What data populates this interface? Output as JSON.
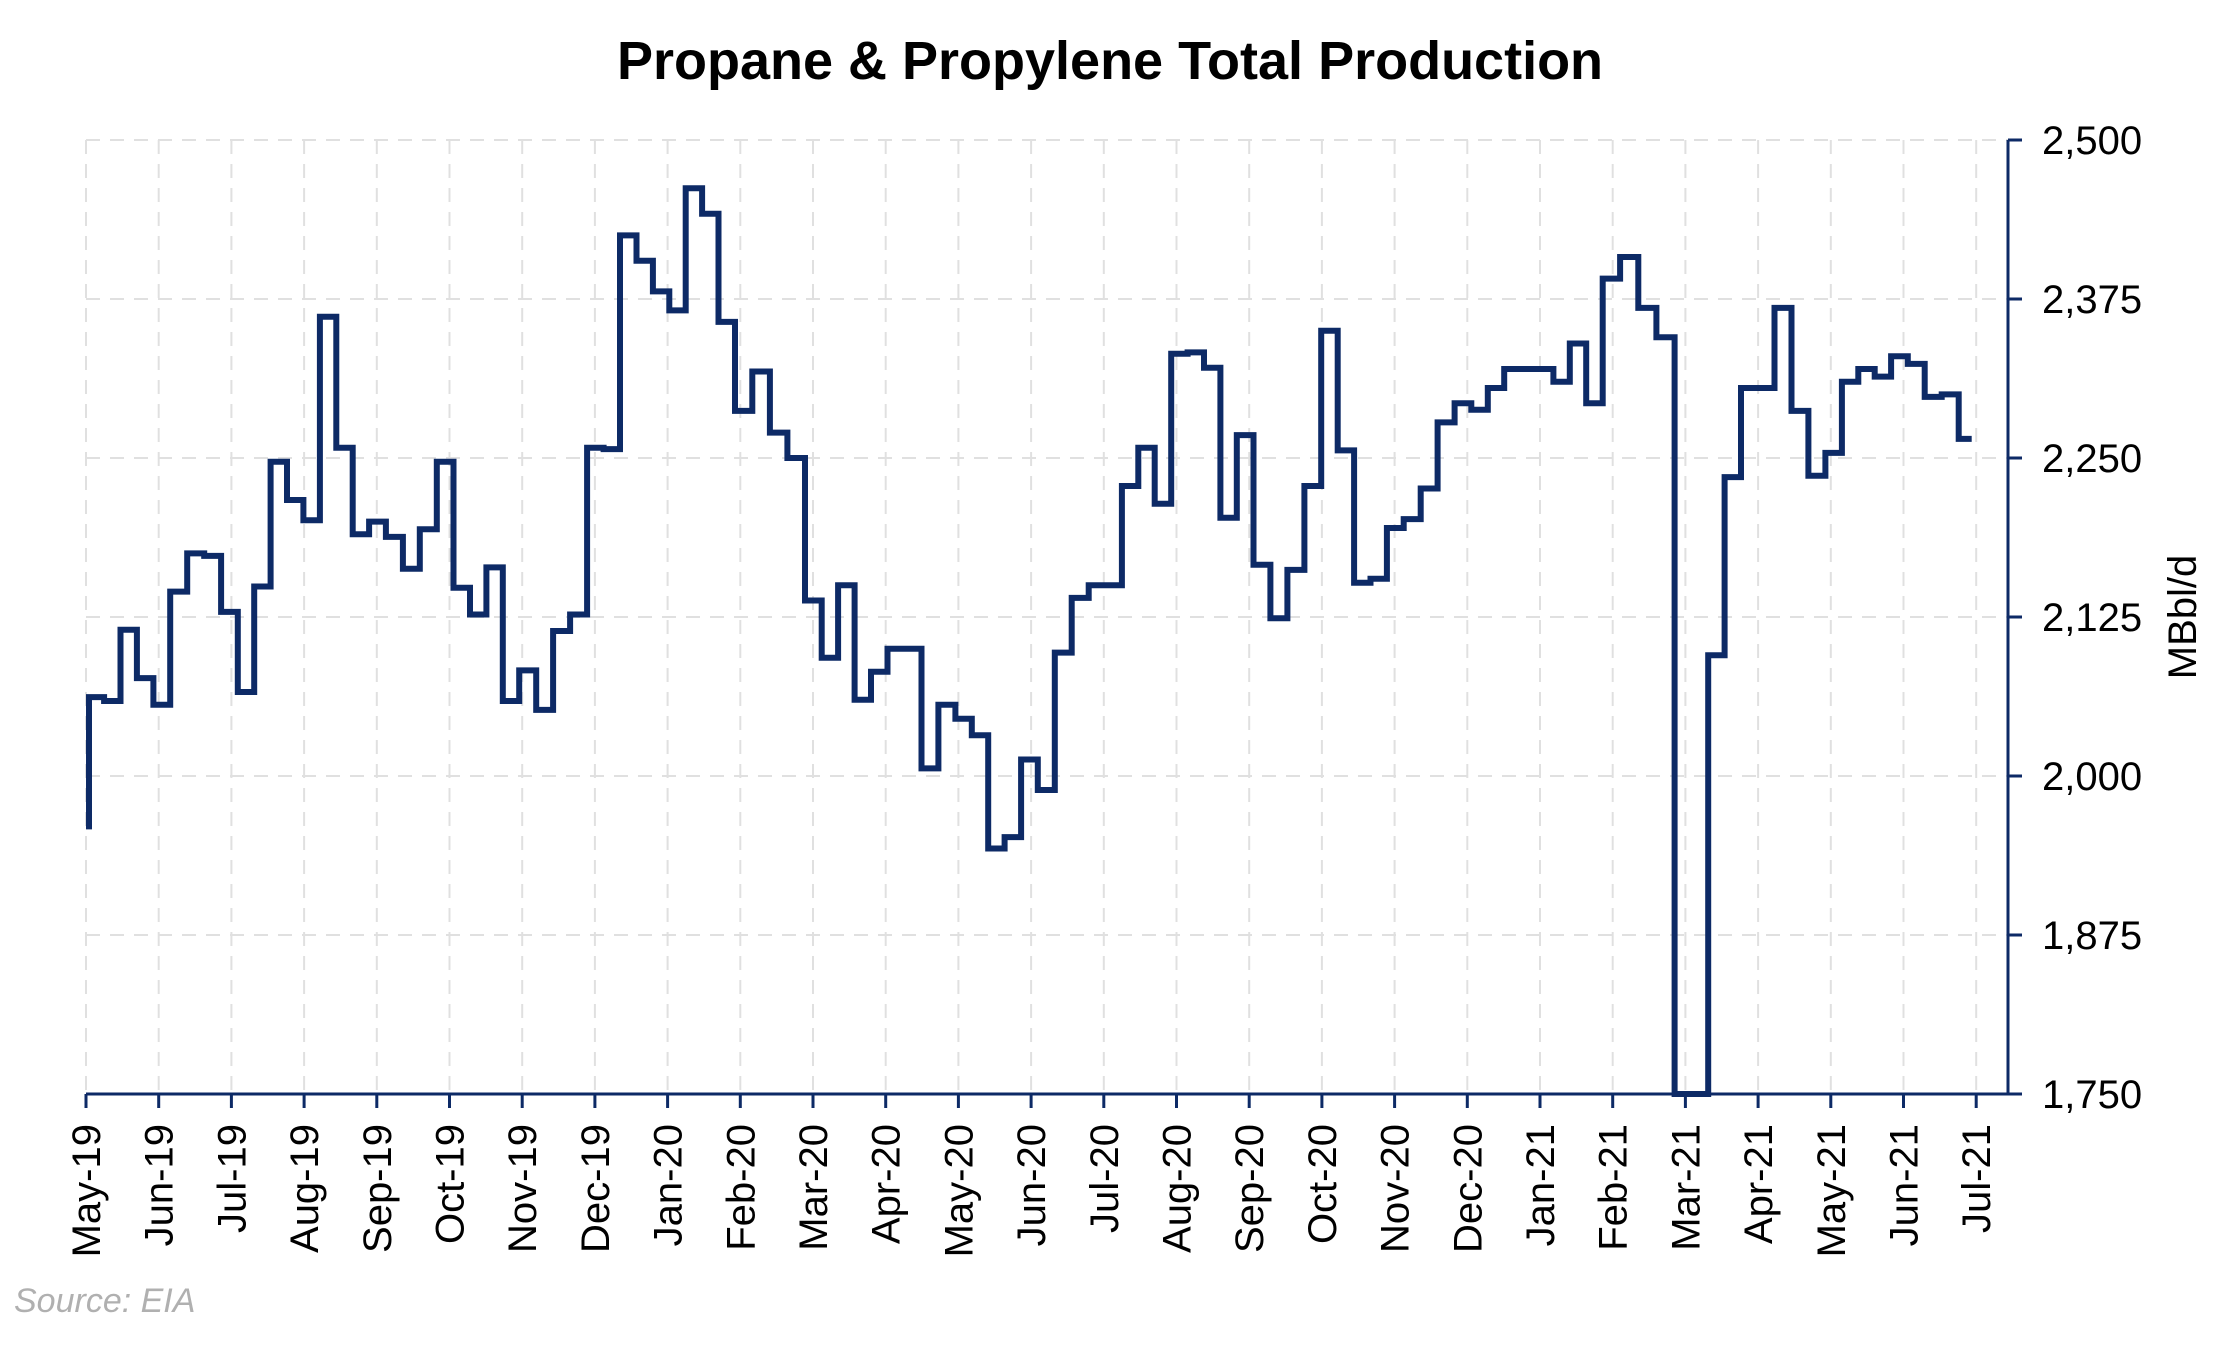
{
  "chart_data": {
    "type": "line",
    "title": "Propane & Propylene Total Production",
    "xlabel": "",
    "ylabel": "MBbl/d",
    "ylim": [
      1750,
      2500
    ],
    "y_ticks": [
      "1,750",
      "1,875",
      "2,000",
      "2,125",
      "2,250",
      "2,375",
      "2,500"
    ],
    "y_tick_values": [
      1750,
      1875,
      2000,
      2125,
      2250,
      2375,
      2500
    ],
    "x_ticks": [
      "May-19",
      "Jun-19",
      "Jul-19",
      "Aug-19",
      "Sep-19",
      "Oct-19",
      "Nov-19",
      "Dec-19",
      "Jan-20",
      "Feb-20",
      "Mar-20",
      "Apr-20",
      "May-20",
      "Jun-20",
      "Jul-20",
      "Aug-20",
      "Sep-20",
      "Oct-20",
      "Nov-20",
      "Dec-20",
      "Jan-21",
      "Feb-21",
      "Mar-21",
      "Apr-21",
      "May-21",
      "Jun-21",
      "Jul-21"
    ],
    "grid": true,
    "line_color": "#0d2a66",
    "series": [
      {
        "x": [
          "2019-05-03",
          "2019-05-10",
          "2019-05-17",
          "2019-05-24",
          "2019-05-31",
          "2019-06-07",
          "2019-06-14",
          "2019-06-21",
          "2019-06-28",
          "2019-07-05",
          "2019-07-12",
          "2019-07-19",
          "2019-07-26",
          "2019-08-02",
          "2019-08-09",
          "2019-08-16",
          "2019-08-23",
          "2019-08-30",
          "2019-09-06",
          "2019-09-13",
          "2019-09-20",
          "2019-09-27",
          "2019-10-04",
          "2019-10-11",
          "2019-10-18",
          "2019-10-25",
          "2019-11-01",
          "2019-11-08",
          "2019-11-15",
          "2019-11-22",
          "2019-11-29",
          "2019-12-06",
          "2019-12-13",
          "2019-12-20",
          "2019-12-27",
          "2020-01-03",
          "2020-01-10",
          "2020-01-17",
          "2020-01-24",
          "2020-01-31",
          "2020-02-07",
          "2020-02-14",
          "2020-02-21",
          "2020-02-28",
          "2020-03-06",
          "2020-03-13",
          "2020-03-20",
          "2020-03-27",
          "2020-04-03",
          "2020-04-10",
          "2020-04-17",
          "2020-04-24",
          "2020-05-01",
          "2020-05-08",
          "2020-05-15",
          "2020-05-22",
          "2020-05-29",
          "2020-06-05",
          "2020-06-12",
          "2020-06-19",
          "2020-06-26",
          "2020-07-03",
          "2020-07-10",
          "2020-07-17",
          "2020-07-24",
          "2020-07-31",
          "2020-08-07",
          "2020-08-14",
          "2020-08-21",
          "2020-08-28",
          "2020-09-04",
          "2020-09-11",
          "2020-09-18",
          "2020-09-25",
          "2020-10-02",
          "2020-10-09",
          "2020-10-16",
          "2020-10-23",
          "2020-10-30",
          "2020-11-06",
          "2020-11-13",
          "2020-11-20",
          "2020-11-27",
          "2020-12-04",
          "2020-12-11",
          "2020-12-18",
          "2020-12-25",
          "2021-01-01",
          "2021-01-08",
          "2021-01-15",
          "2021-01-22",
          "2021-01-29",
          "2021-02-05",
          "2021-02-12",
          "2021-02-19",
          "2021-02-26",
          "2021-03-05",
          "2021-03-12",
          "2021-03-19",
          "2021-03-26",
          "2021-04-02",
          "2021-04-09",
          "2021-04-16",
          "2021-04-23",
          "2021-04-30",
          "2021-05-07",
          "2021-05-14",
          "2021-05-21",
          "2021-05-28",
          "2021-06-04",
          "2021-06-11",
          "2021-06-18",
          "2021-06-25"
        ],
        "values": [
          2062,
          2059,
          2115,
          2077,
          2056,
          2145,
          2175,
          2173,
          2129,
          2066,
          2149,
          2247,
          2217,
          2201,
          2361,
          2258,
          2190,
          2200,
          2188,
          2163,
          2194,
          2247,
          2148,
          2127,
          2164,
          2059,
          2083,
          2052,
          2114,
          2127,
          2258,
          2257,
          2425,
          2405,
          2381,
          2366,
          2462,
          2442,
          2357,
          2287,
          2318,
          2270,
          2250,
          2138,
          2093,
          2150,
          2060,
          2082,
          2100,
          2100,
          2006,
          2056,
          2045,
          2032,
          1943,
          1952,
          2013,
          1989,
          2097,
          2140,
          2150,
          2150,
          2228,
          2258,
          2214,
          2332,
          2333,
          2321,
          2203,
          2268,
          2166,
          2124,
          2162,
          2228,
          2350,
          2256,
          2152,
          2155,
          2195,
          2202,
          2226,
          2278,
          2293,
          2288,
          2305,
          2320,
          2320,
          2320,
          2310,
          2340,
          2293,
          2391,
          2408,
          2368,
          2345,
          1740,
          1740,
          2095,
          2235,
          2305,
          2305,
          2368,
          2287,
          2236,
          2254,
          2310,
          2320,
          2314,
          2330,
          2324,
          2298,
          2300,
          2265
        ]
      }
    ],
    "start_value": 1958,
    "source": "Source: EIA"
  }
}
